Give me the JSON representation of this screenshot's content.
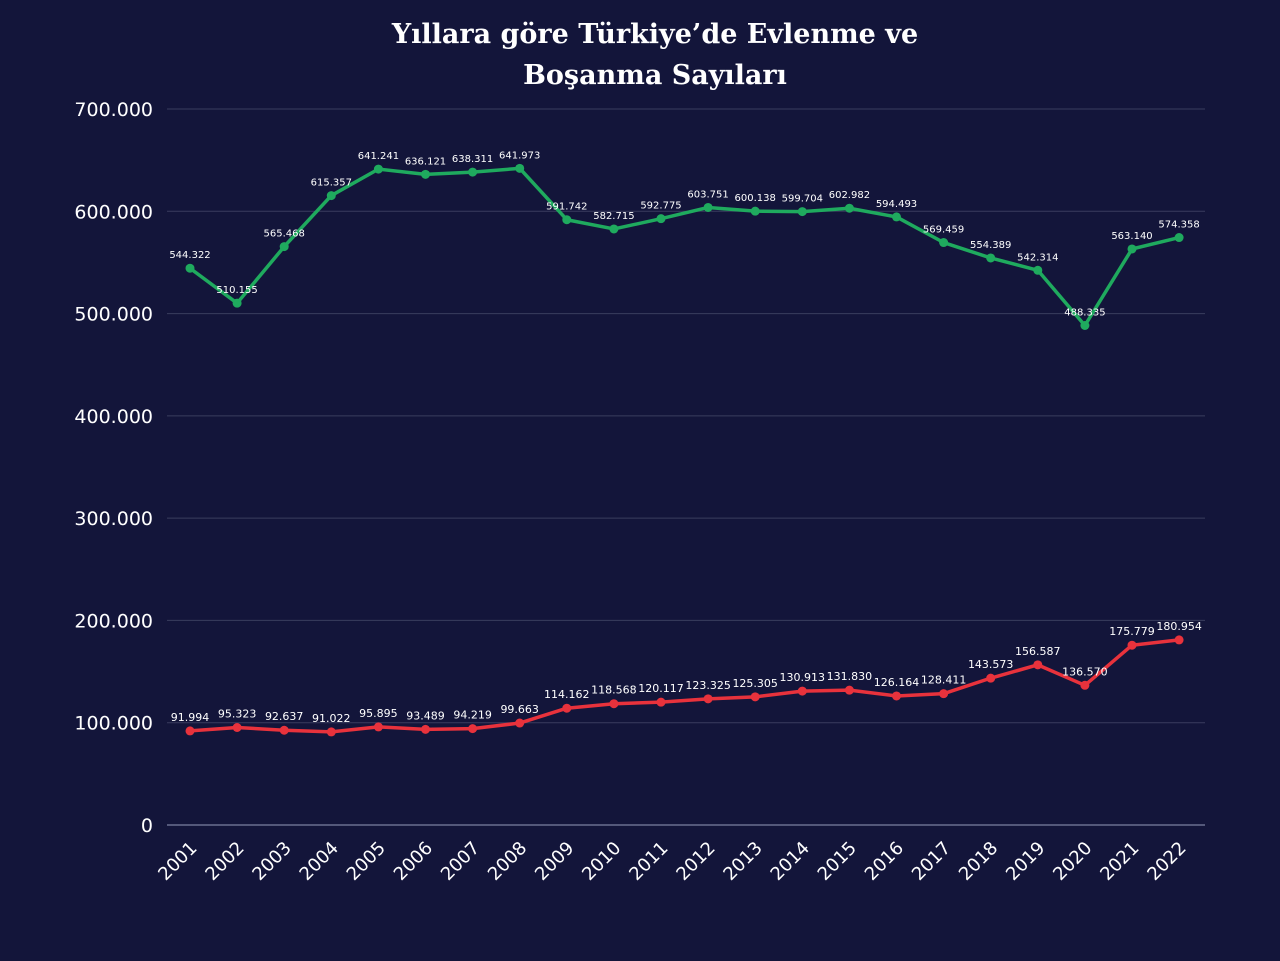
{
  "chart_data": {
    "type": "line",
    "title_lines": [
      "Yıllara göre Türkiye’de Evlenme ve",
      "Boşanma Sayıları"
    ],
    "xlabel": "",
    "ylabel": "",
    "ylim": [
      0,
      700000
    ],
    "yticks": [
      0,
      100000,
      200000,
      300000,
      400000,
      500000,
      600000,
      700000
    ],
    "ytick_labels": [
      "0",
      "100.000",
      "200.000",
      "300.000",
      "400.000",
      "500.000",
      "600.000",
      "700.000"
    ],
    "grid": true,
    "categories": [
      "2001",
      "2002",
      "2003",
      "2004",
      "2005",
      "2006",
      "2007",
      "2008",
      "2009",
      "2010",
      "2011",
      "2012",
      "2013",
      "2014",
      "2015",
      "2016",
      "2017",
      "2018",
      "2019",
      "2020",
      "2021",
      "2022"
    ],
    "series": [
      {
        "color": "#1faa5e",
        "values": [
          544322,
          510155,
          565468,
          615357,
          641241,
          636121,
          638311,
          641973,
          591742,
          582715,
          592775,
          603751,
          600138,
          599704,
          602982,
          594493,
          569459,
          554389,
          542314,
          488335,
          563140,
          574358
        ],
        "labels": [
          "544.322",
          "510.155",
          "565.468",
          "615.357",
          "641.241",
          "636.121",
          "638.311",
          "641.973",
          "591.742",
          "582.715",
          "592.775",
          "603.751",
          "600.138",
          "599.704",
          "602.982",
          "594.493",
          "569.459",
          "554.389",
          "542.314",
          "488.335",
          "563.140",
          "574.358"
        ]
      },
      {
        "color": "#e8323c",
        "values": [
          91994,
          95323,
          92637,
          91022,
          95895,
          93489,
          94219,
          99663,
          114162,
          118568,
          120117,
          123325,
          125305,
          130913,
          131830,
          126164,
          128411,
          143573,
          156587,
          136570,
          175779,
          180954
        ],
        "labels": [
          "91.994",
          "95.323",
          "92.637",
          "91.022",
          "95.895",
          "93.489",
          "94.219",
          "99.663",
          "114.162",
          "118.568",
          "120.117",
          "123.325",
          "125.305",
          "130.913",
          "131.830",
          "126.164",
          "128.411",
          "143.573",
          "156.587",
          "136.570",
          "175.779",
          "180.954"
        ]
      }
    ]
  }
}
